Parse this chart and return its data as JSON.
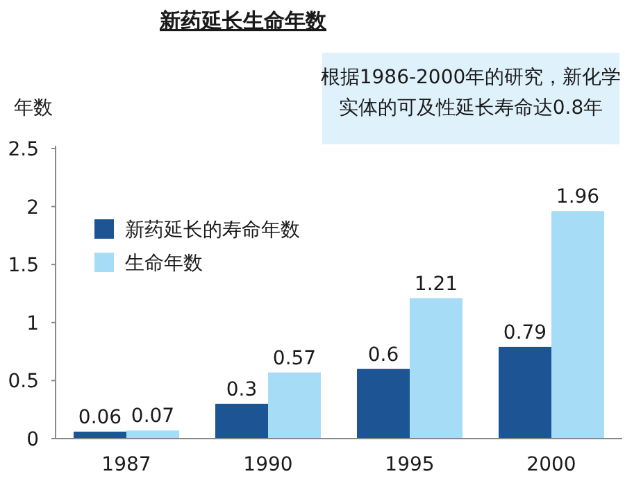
{
  "chart_data": {
    "type": "bar",
    "title": "新药延长生命年数",
    "ylabel": "年数",
    "annotations": [
      "根据1986-2000年的研究，新化学实体的可及性延长寿命达0.8年"
    ],
    "categories": [
      "1987",
      "1990",
      "1995",
      "2000"
    ],
    "series": [
      {
        "name": "新药延长的寿命年数",
        "color": "#1c5494",
        "values": [
          0.06,
          0.3,
          0.6,
          0.79
        ]
      },
      {
        "name": "生命年数",
        "color": "#a6dcf5",
        "values": [
          0.07,
          0.57,
          1.21,
          1.96
        ]
      }
    ],
    "ylim": [
      0,
      2.5
    ],
    "yticks": [
      0,
      0.5,
      1,
      1.5,
      2,
      2.5
    ],
    "data_labels": true,
    "legend": "top left",
    "grid": false
  }
}
